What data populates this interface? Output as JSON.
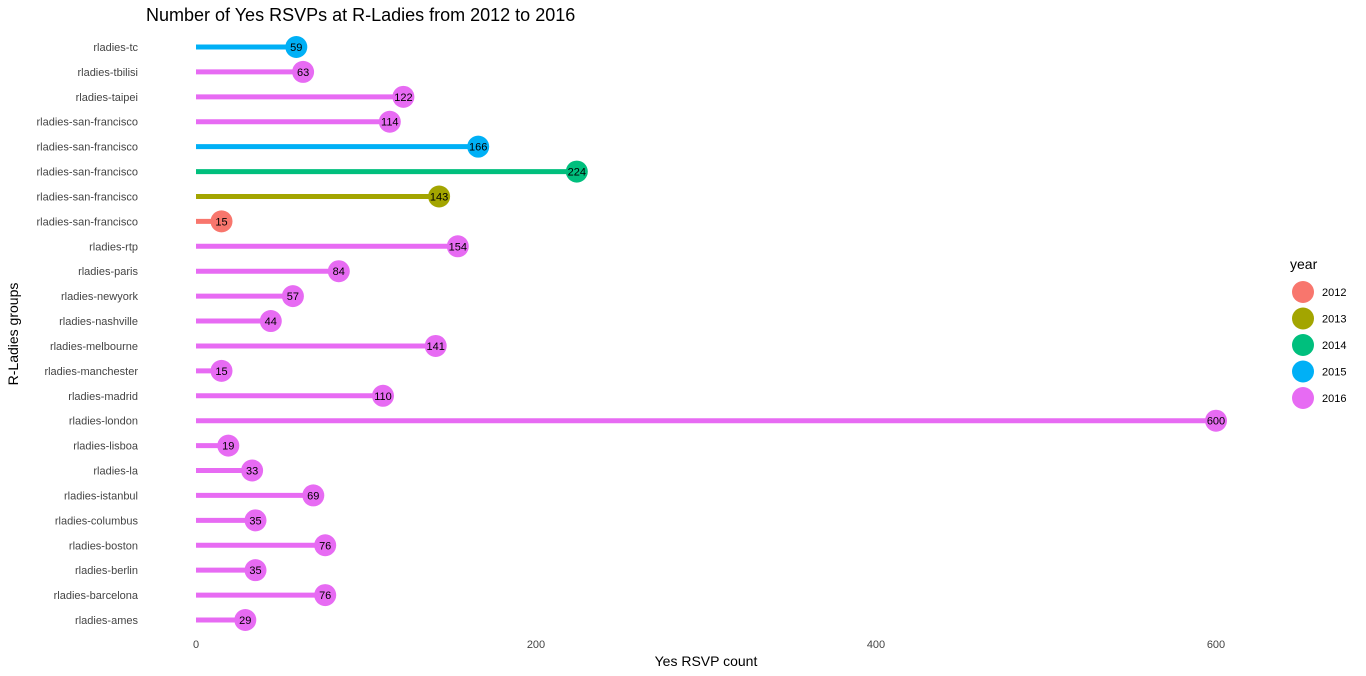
{
  "chart_data": {
    "type": "bar",
    "subtype": "lollipop-horizontal",
    "title": "Number of Yes RSVPs at R-Ladies from 2012 to 2016",
    "xlabel": "Yes RSVP count",
    "ylabel": "R-Ladies groups",
    "xlim": [
      0,
      600
    ],
    "x_ticks": [
      0,
      200,
      400,
      600
    ],
    "grid": false,
    "legend": {
      "title": "year",
      "position": "right",
      "entries": [
        {
          "label": "2012",
          "color": "#F8766D"
        },
        {
          "label": "2013",
          "color": "#A3A500"
        },
        {
          "label": "2014",
          "color": "#00BF7D"
        },
        {
          "label": "2015",
          "color": "#00B0F6"
        },
        {
          "label": "2016",
          "color": "#E76BF3"
        }
      ]
    },
    "rows": [
      {
        "group": "rladies-tc",
        "year": "2015",
        "value": 59
      },
      {
        "group": "rladies-tbilisi",
        "year": "2016",
        "value": 63
      },
      {
        "group": "rladies-taipei",
        "year": "2016",
        "value": 122
      },
      {
        "group": "rladies-san-francisco",
        "year": "2016",
        "value": 114
      },
      {
        "group": "rladies-san-francisco",
        "year": "2015",
        "value": 166
      },
      {
        "group": "rladies-san-francisco",
        "year": "2014",
        "value": 224
      },
      {
        "group": "rladies-san-francisco",
        "year": "2013",
        "value": 143
      },
      {
        "group": "rladies-san-francisco",
        "year": "2012",
        "value": 15
      },
      {
        "group": "rladies-rtp",
        "year": "2016",
        "value": 154
      },
      {
        "group": "rladies-paris",
        "year": "2016",
        "value": 84
      },
      {
        "group": "rladies-newyork",
        "year": "2016",
        "value": 57
      },
      {
        "group": "rladies-nashville",
        "year": "2016",
        "value": 44
      },
      {
        "group": "rladies-melbourne",
        "year": "2016",
        "value": 141
      },
      {
        "group": "rladies-manchester",
        "year": "2016",
        "value": 15
      },
      {
        "group": "rladies-madrid",
        "year": "2016",
        "value": 110
      },
      {
        "group": "rladies-london",
        "year": "2016",
        "value": 600
      },
      {
        "group": "rladies-lisboa",
        "year": "2016",
        "value": 19
      },
      {
        "group": "rladies-la",
        "year": "2016",
        "value": 33
      },
      {
        "group": "rladies-istanbul",
        "year": "2016",
        "value": 69
      },
      {
        "group": "rladies-columbus",
        "year": "2016",
        "value": 35
      },
      {
        "group": "rladies-boston",
        "year": "2016",
        "value": 76
      },
      {
        "group": "rladies-berlin",
        "year": "2016",
        "value": 35
      },
      {
        "group": "rladies-barcelona",
        "year": "2016",
        "value": 76
      },
      {
        "group": "rladies-ames",
        "year": "2016",
        "value": 29
      }
    ]
  }
}
